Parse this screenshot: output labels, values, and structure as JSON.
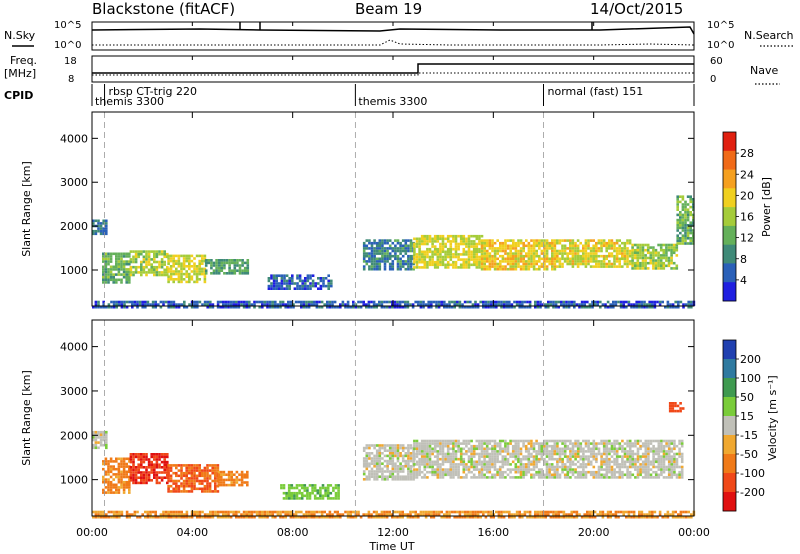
{
  "header": {
    "station": "Blackstone (fitACF)",
    "beam": "Beam 19",
    "date": "14/Oct/2015"
  },
  "noise_panel": {
    "left_label": "N.Sky",
    "right_label": "N.Search",
    "ticks_left": [
      "10^5",
      "10^0"
    ],
    "ticks_right": [
      "10^5",
      "10^0"
    ]
  },
  "freq_panel": {
    "left_label_top": "Freq.",
    "left_label_bottom": "[MHz]",
    "right_label": "Nave",
    "ticks_left": [
      "18",
      "8"
    ],
    "ticks_right": [
      "60",
      "0"
    ]
  },
  "cpid": {
    "label": "CPID",
    "segments": [
      {
        "start_hour": 0.0,
        "top": "",
        "bottom": "themis 3300"
      },
      {
        "start_hour": 0.5,
        "top": "rbsp CT-trig 220",
        "bottom": ""
      },
      {
        "start_hour": 10.5,
        "top": "",
        "bottom": "themis 3300"
      },
      {
        "start_hour": 18.0,
        "top": "normal (fast) 151",
        "bottom": ""
      }
    ]
  },
  "x_axis": {
    "label": "Time UT",
    "range_hours": [
      0,
      24
    ],
    "ticks": [
      {
        "hour": 0,
        "label": "00:00"
      },
      {
        "hour": 4,
        "label": "04:00"
      },
      {
        "hour": 8,
        "label": "08:00"
      },
      {
        "hour": 12,
        "label": "12:00"
      },
      {
        "hour": 16,
        "label": "16:00"
      },
      {
        "hour": 20,
        "label": "20:00"
      },
      {
        "hour": 24,
        "label": "00:00"
      }
    ]
  },
  "chart_data": [
    {
      "type": "heatmap",
      "name": "power",
      "ylabel": "Slant Range [km]",
      "x_range_hours": [
        0,
        24
      ],
      "ylim": [
        180,
        4600
      ],
      "yticks": [
        1000,
        2000,
        3000,
        4000
      ],
      "colorbar": {
        "label": "Power [dB]",
        "range": [
          0,
          32
        ],
        "ticks": [
          4,
          8,
          12,
          16,
          20,
          24,
          28
        ],
        "colors": [
          "#1f1fe0",
          "#2a60b8",
          "#3f8a78",
          "#64b05a",
          "#a5cc3a",
          "#f0d020",
          "#f5a020",
          "#f06a18",
          "#e02010"
        ]
      },
      "regions": [
        {
          "t0": 0.0,
          "t1": 0.6,
          "r_lo": 1800,
          "r_hi": 2150,
          "value": 8
        },
        {
          "t0": 0.4,
          "t1": 1.5,
          "r_lo": 700,
          "r_hi": 1400,
          "value": 14
        },
        {
          "t0": 1.5,
          "t1": 3.0,
          "r_lo": 900,
          "r_hi": 1450,
          "value": 18
        },
        {
          "t0": 3.0,
          "t1": 4.5,
          "r_lo": 750,
          "r_hi": 1350,
          "value": 20
        },
        {
          "t0": 4.5,
          "t1": 6.2,
          "r_lo": 900,
          "r_hi": 1250,
          "value": 12
        },
        {
          "t0": 7.0,
          "t1": 9.5,
          "r_lo": 550,
          "r_hi": 900,
          "value": 6
        },
        {
          "t0": 10.8,
          "t1": 12.8,
          "r_lo": 1000,
          "r_hi": 1700,
          "value": 9
        },
        {
          "t0": 12.8,
          "t1": 15.5,
          "r_lo": 1050,
          "r_hi": 1800,
          "value": 20
        },
        {
          "t0": 15.5,
          "t1": 18.5,
          "r_lo": 1000,
          "r_hi": 1700,
          "value": 22
        },
        {
          "t0": 18.5,
          "t1": 21.5,
          "r_lo": 1100,
          "r_hi": 1700,
          "value": 21
        },
        {
          "t0": 21.5,
          "t1": 23.3,
          "r_lo": 1050,
          "r_hi": 1600,
          "value": 18
        },
        {
          "t0": 23.3,
          "t1": 24.0,
          "r_lo": 1600,
          "r_hi": 2700,
          "value": 14
        },
        {
          "t0": 0.0,
          "t1": 24.0,
          "r_lo": 180,
          "r_hi": 300,
          "value": 6
        }
      ]
    },
    {
      "type": "heatmap",
      "name": "velocity",
      "ylabel": "Slant Range [km]",
      "x_range_hours": [
        0,
        24
      ],
      "ylim": [
        180,
        4600
      ],
      "yticks": [
        1000,
        2000,
        3000,
        4000
      ],
      "colorbar": {
        "label": "Velocity [m s⁻¹]",
        "tick_labels": [
          "200",
          "100",
          "50",
          "15",
          "-15",
          "-50",
          "-100",
          "-200"
        ],
        "colors": [
          "#2040b0",
          "#2f7aa0",
          "#3f9a50",
          "#7acc3a",
          "#c0c0b8",
          "#f0a830",
          "#f07a18",
          "#f04818",
          "#e01010"
        ]
      },
      "regions": [
        {
          "t0": 0.0,
          "t1": 0.6,
          "r_lo": 1700,
          "r_hi": 2100,
          "value": 0
        },
        {
          "t0": 0.4,
          "t1": 1.5,
          "r_lo": 700,
          "r_hi": 1500,
          "value": -60
        },
        {
          "t0": 1.5,
          "t1": 3.0,
          "r_lo": 900,
          "r_hi": 1600,
          "value": -200
        },
        {
          "t0": 3.0,
          "t1": 5.0,
          "r_lo": 750,
          "r_hi": 1350,
          "value": -100
        },
        {
          "t0": 5.0,
          "t1": 6.2,
          "r_lo": 900,
          "r_hi": 1200,
          "value": -60
        },
        {
          "t0": 7.5,
          "t1": 9.8,
          "r_lo": 550,
          "r_hi": 900,
          "value": 40
        },
        {
          "t0": 10.8,
          "t1": 12.8,
          "r_lo": 1000,
          "r_hi": 1800,
          "value": 0
        },
        {
          "t0": 12.8,
          "t1": 23.5,
          "r_lo": 1050,
          "r_hi": 1900,
          "value": 0
        },
        {
          "t0": 23.0,
          "t1": 23.6,
          "r_lo": 2550,
          "r_hi": 2750,
          "value": -120
        },
        {
          "t0": 0.0,
          "t1": 24.0,
          "r_lo": 180,
          "r_hi": 300,
          "value": -50
        }
      ]
    }
  ]
}
